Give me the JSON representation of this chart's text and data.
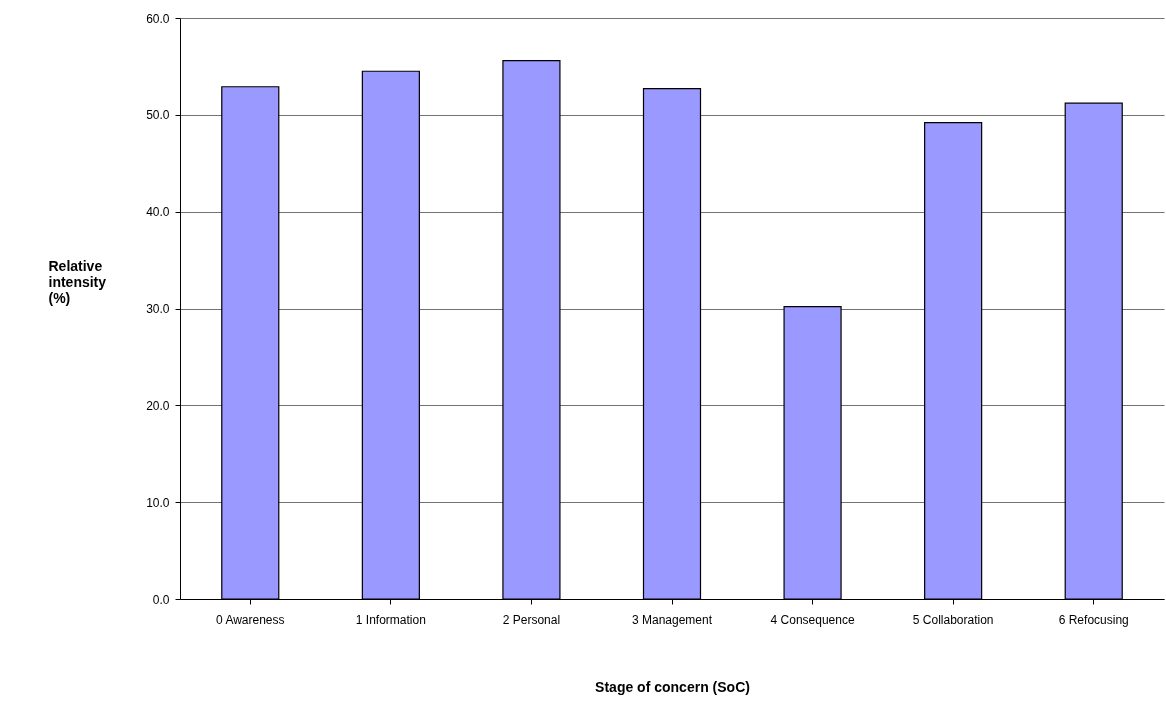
{
  "chart_data": {
    "type": "bar",
    "xlabel": "Stage of concern (SoC)",
    "ylabel": "Relative intensity (%)",
    "categories": [
      "0 Awareness",
      "1 Information",
      "2 Personal",
      "3 Management",
      "4 Consequence",
      "5 Collaboration",
      "6 Refocusing"
    ],
    "values": [
      52.9,
      54.5,
      55.6,
      52.7,
      30.2,
      49.2,
      51.2
    ],
    "color": "#9999ff",
    "ylim": [
      0,
      60
    ],
    "yticks": [
      {
        "value": 0,
        "label": "0.0"
      },
      {
        "value": 10,
        "label": "10.0"
      },
      {
        "value": 20,
        "label": "20.0"
      },
      {
        "value": 30,
        "label": "30.0"
      },
      {
        "value": 40,
        "label": "40.0"
      },
      {
        "value": 50,
        "label": "50.0"
      },
      {
        "value": 60,
        "label": "60.0"
      }
    ],
    "grid": "y"
  }
}
